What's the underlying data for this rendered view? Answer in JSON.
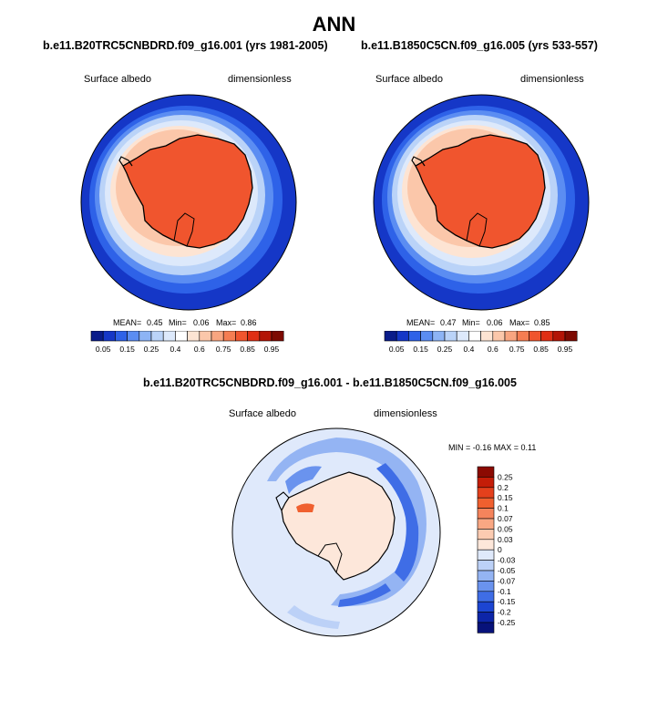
{
  "page": {
    "title": "ANN"
  },
  "panel_left": {
    "case_title": "b.e11.B20TRC5CNBDRD.f09_g16.001 (yrs 1981-2005)",
    "variable": "Surface albedo",
    "units": "dimensionless",
    "stats": {
      "mean_label": "MEAN=",
      "mean": "0.45",
      "min_label": "Min=",
      "min": "0.06",
      "max_label": "Max=",
      "max": "0.86"
    }
  },
  "panel_right": {
    "case_title": "b.e11.B1850C5CN.f09_g16.005 (yrs 533-557)",
    "variable": "Surface albedo",
    "units": "dimensionless",
    "stats": {
      "mean_label": "MEAN=",
      "mean": "0.47",
      "min_label": "Min=",
      "min": "0.06",
      "max_label": "Max=",
      "max": "0.85"
    }
  },
  "panel_diff": {
    "case_title": "b.e11.B20TRC5CNBDRD.f09_g16.001 - b.e11.B1850C5CN.f09_g16.005",
    "variable": "Surface albedo",
    "units": "dimensionless",
    "minmax_text": "MIN = -0.16 MAX = 0.11"
  },
  "colorbar_main": {
    "labels": [
      "0.05",
      "0.15",
      "0.25",
      "0.4",
      "0.6",
      "0.75",
      "0.85",
      "0.95"
    ],
    "colors": [
      "#0a1c8a",
      "#1537c7",
      "#2e62e8",
      "#5b8df2",
      "#8db4f5",
      "#bad3f8",
      "#dde9fb",
      "#ffffff",
      "#fde4d3",
      "#fbc7aa",
      "#f8a580",
      "#f57d52",
      "#f0552e",
      "#e02e14",
      "#b31406",
      "#7d0a02"
    ]
  },
  "colorbar_diff": {
    "labels": [
      "0.25",
      "0.2",
      "0.15",
      "0.1",
      "0.07",
      "0.05",
      "0.03",
      "0",
      "-0.03",
      "-0.05",
      "-0.07",
      "-0.1",
      "-0.15",
      "-0.2",
      "-0.25"
    ],
    "colors": [
      "#8b0a02",
      "#c41d08",
      "#e4401c",
      "#f0602f",
      "#f5845c",
      "#f9a783",
      "#fccbb1",
      "#fde7da",
      "#dfe9fb",
      "#bcd1f7",
      "#94b4f3",
      "#6a93ee",
      "#3f6de6",
      "#1c45d2",
      "#0d25a8",
      "#07127a"
    ]
  },
  "chart_data": {
    "type": "map",
    "projection": "south polar stereographic",
    "season": "ANN",
    "variable": "Surface albedo",
    "units": "dimensionless",
    "panels": [
      {
        "case": "b.e11.B20TRC5CNBDRD.f09_g16.001",
        "years": "1981-2005",
        "mean": 0.45,
        "min": 0.06,
        "max": 0.86
      },
      {
        "case": "b.e11.B1850C5CN.f09_g16.005",
        "years": "533-557",
        "mean": 0.47,
        "min": 0.06,
        "max": 0.85
      },
      {
        "case": "b.e11.B20TRC5CNBDRD.f09_g16.001 - b.e11.B1850C5CN.f09_g16.005",
        "min": -0.16,
        "max": 0.11
      }
    ],
    "contour_levels_main": [
      0.05,
      0.1,
      0.15,
      0.2,
      0.25,
      0.3,
      0.4,
      0.5,
      0.6,
      0.7,
      0.75,
      0.8,
      0.85,
      0.9,
      0.95
    ],
    "contour_levels_diff": [
      -0.25,
      -0.2,
      -0.15,
      -0.1,
      -0.07,
      -0.05,
      -0.03,
      0,
      0.03,
      0.05,
      0.07,
      0.1,
      0.15,
      0.2,
      0.25
    ]
  }
}
